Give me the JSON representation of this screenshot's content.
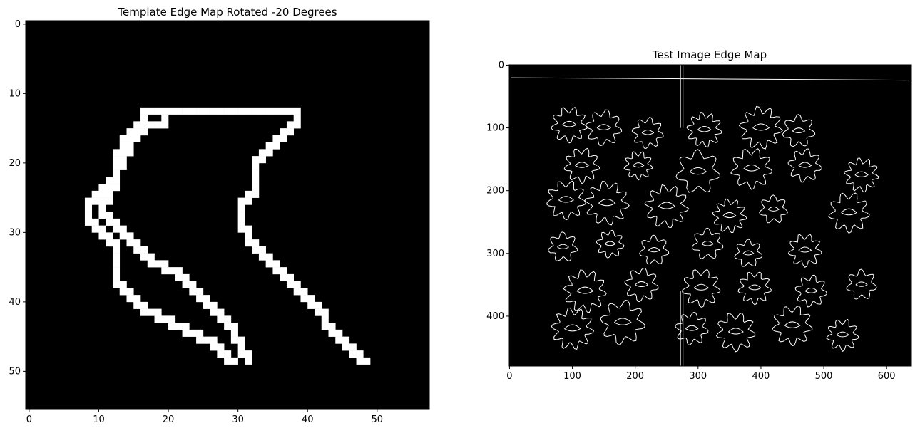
{
  "chart_data": [
    {
      "type": "heatmap",
      "title": "Template Edge Map Rotated -20 Degrees",
      "xlabel": "",
      "ylabel": "",
      "grid": false,
      "colormap": "gray",
      "xlim": [
        -0.5,
        57.5
      ],
      "ylim": [
        55.5,
        -0.5
      ],
      "xticks": [
        0,
        10,
        20,
        30,
        40,
        50
      ],
      "yticks": [
        0,
        10,
        20,
        30,
        40,
        50
      ],
      "outline_rows": [
        [
          13,
          19,
          16,
          38
        ],
        [
          14,
          16,
          15,
          37
        ],
        [
          15,
          15,
          14,
          36
        ],
        [
          16,
          14,
          13,
          35
        ],
        [
          17,
          14,
          13,
          34
        ],
        [
          18,
          13,
          12,
          33
        ],
        [
          19,
          13,
          12,
          32
        ],
        [
          20,
          12,
          12,
          32
        ],
        [
          21,
          12,
          12,
          32
        ],
        [
          22,
          11,
          12,
          32
        ],
        [
          23,
          10,
          11,
          32
        ],
        [
          24,
          9,
          11,
          31
        ],
        [
          25,
          8,
          10,
          30
        ],
        [
          26,
          8,
          10,
          30
        ],
        [
          27,
          8,
          11,
          30
        ],
        [
          28,
          9,
          12,
          30
        ],
        [
          29,
          10,
          13,
          31
        ],
        [
          30,
          11,
          14,
          31
        ],
        [
          31,
          12,
          15,
          32
        ],
        [
          32,
          12,
          16,
          33
        ],
        [
          33,
          12,
          17,
          34
        ],
        [
          34,
          12,
          19,
          35
        ],
        [
          35,
          12,
          21,
          36
        ],
        [
          36,
          12,
          22,
          37
        ],
        [
          37,
          13,
          23,
          38
        ],
        [
          38,
          14,
          24,
          39
        ],
        [
          39,
          15,
          25,
          40
        ],
        [
          40,
          16,
          26,
          41
        ],
        [
          41,
          18,
          27,
          42
        ],
        [
          42,
          20,
          28,
          42
        ],
        [
          43,
          22,
          29,
          43
        ],
        [
          44,
          24,
          29,
          44
        ],
        [
          45,
          26,
          30,
          45
        ],
        [
          46,
          27,
          30,
          46
        ],
        [
          47,
          28,
          31,
          47
        ],
        [
          48,
          29,
          31,
          48
        ]
      ]
    },
    {
      "type": "heatmap",
      "title": "Test Image Edge Map",
      "xlabel": "",
      "ylabel": "",
      "grid": false,
      "colormap": "gray",
      "xlim": [
        -0.5,
        639.5
      ],
      "ylim": [
        479.5,
        -0.5
      ],
      "xticks": [
        0,
        100,
        200,
        300,
        400,
        500,
        600
      ],
      "yticks": [
        0,
        100,
        200,
        300,
        400
      ],
      "blobs": [
        [
          95,
          95
        ],
        [
          150,
          100
        ],
        [
          220,
          108
        ],
        [
          310,
          103
        ],
        [
          400,
          100
        ],
        [
          460,
          105
        ],
        [
          115,
          160
        ],
        [
          205,
          160
        ],
        [
          300,
          170
        ],
        [
          385,
          165
        ],
        [
          470,
          160
        ],
        [
          560,
          175
        ],
        [
          90,
          215
        ],
        [
          155,
          220
        ],
        [
          250,
          225
        ],
        [
          350,
          240
        ],
        [
          420,
          230
        ],
        [
          540,
          235
        ],
        [
          85,
          290
        ],
        [
          160,
          285
        ],
        [
          230,
          295
        ],
        [
          315,
          285
        ],
        [
          380,
          300
        ],
        [
          470,
          295
        ],
        [
          120,
          360
        ],
        [
          210,
          350
        ],
        [
          305,
          355
        ],
        [
          390,
          355
        ],
        [
          480,
          360
        ],
        [
          560,
          350
        ],
        [
          100,
          420
        ],
        [
          180,
          410
        ],
        [
          290,
          420
        ],
        [
          360,
          425
        ],
        [
          450,
          415
        ],
        [
          530,
          430
        ]
      ]
    }
  ]
}
